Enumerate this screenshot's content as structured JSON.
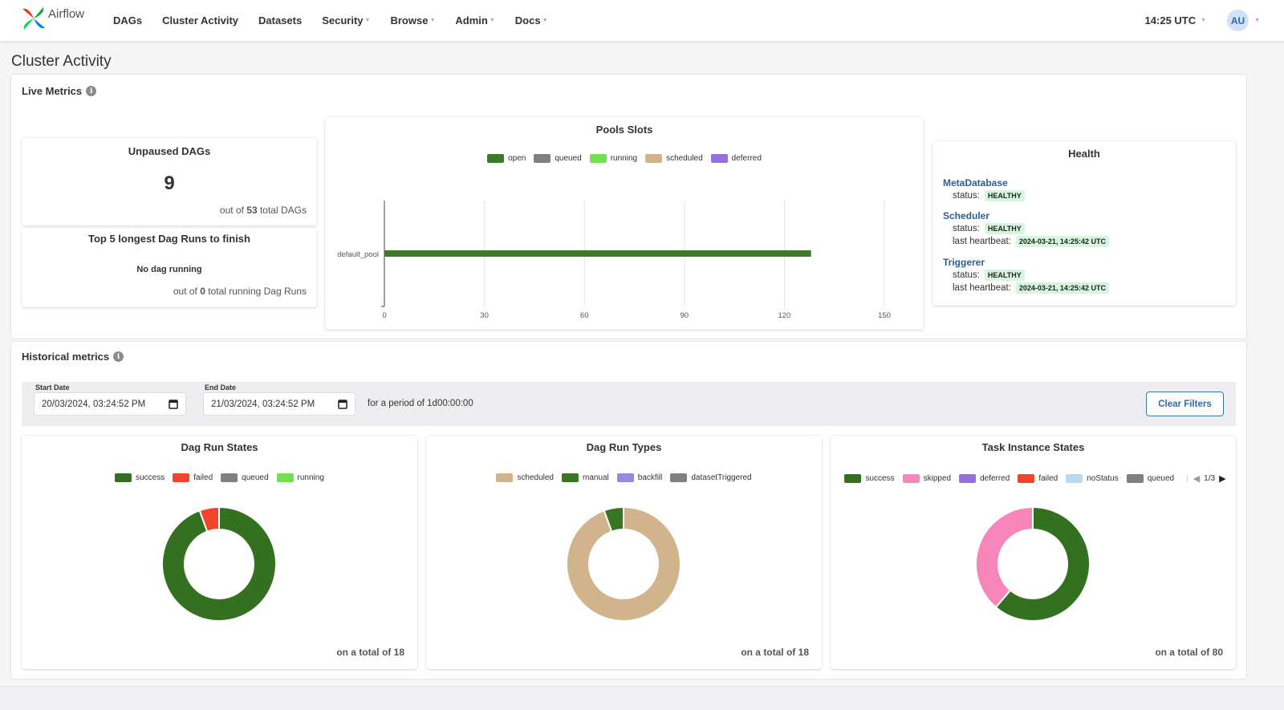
{
  "app": {
    "brand": "Airflow"
  },
  "nav": {
    "items": [
      {
        "label": "DAGs",
        "dropdown": false
      },
      {
        "label": "Cluster Activity",
        "dropdown": false
      },
      {
        "label": "Datasets",
        "dropdown": false
      },
      {
        "label": "Security",
        "dropdown": true
      },
      {
        "label": "Browse",
        "dropdown": true
      },
      {
        "label": "Admin",
        "dropdown": true
      },
      {
        "label": "Docs",
        "dropdown": true
      }
    ],
    "clock": "14:25 UTC",
    "avatar": "AU"
  },
  "page": {
    "title": "Cluster Activity"
  },
  "live": {
    "title": "Live Metrics",
    "unpaused": {
      "title": "Unpaused DAGs",
      "value": "9",
      "prefix": "out of",
      "total": "53",
      "suffix": "total DAGs"
    },
    "longest": {
      "title": "Top 5 longest Dag Runs to finish",
      "empty": "No dag running",
      "prefix": "out of",
      "total": "0",
      "suffix": "total running Dag Runs"
    },
    "health": {
      "title": "Health",
      "components": [
        {
          "name": "MetaDatabase",
          "status_label": "status:",
          "status": "HEALTHY"
        },
        {
          "name": "Scheduler",
          "status_label": "status:",
          "status": "HEALTHY",
          "heartbeat_label": "last heartbeat:",
          "heartbeat": "2024-03-21, 14:25:42 UTC"
        },
        {
          "name": "Triggerer",
          "status_label": "status:",
          "status": "HEALTHY",
          "heartbeat_label": "last heartbeat:",
          "heartbeat": "2024-03-21, 14:25:42 UTC"
        }
      ]
    }
  },
  "colors": {
    "open": "#3e7a2b",
    "queued": "#808080",
    "running": "#72e050",
    "scheduled": "#d2b48c",
    "deferred": "#9370db",
    "success": "#337020",
    "failed": "#f0452a",
    "manual": "#387525",
    "backfill": "#9a85e0",
    "datasetTriggered": "#808080",
    "skipped": "#f787bb",
    "noStatus": "#b8d9ee"
  },
  "historical": {
    "title": "Historical metrics",
    "start_label": "Start Date",
    "start_value": "20/03/2024, 03:24:52 PM",
    "end_label": "End Date",
    "end_value": "21/03/2024, 03:24:52 PM",
    "period": "for a period of 1d00:00:00",
    "clear_button": "Clear Filters"
  },
  "chart_data": [
    {
      "type": "bar",
      "orientation": "horizontal",
      "title": "Pools Slots",
      "categories": [
        "default_pool"
      ],
      "series": [
        {
          "name": "open",
          "values": [
            128
          ]
        },
        {
          "name": "queued",
          "values": [
            0
          ]
        },
        {
          "name": "running",
          "values": [
            0
          ]
        },
        {
          "name": "scheduled",
          "values": [
            0
          ]
        },
        {
          "name": "deferred",
          "values": [
            0
          ]
        }
      ],
      "xlim": [
        0,
        150
      ],
      "xticks": [
        0,
        30,
        60,
        90,
        120,
        150
      ],
      "grid": true,
      "legend": "top"
    },
    {
      "type": "pie",
      "donut": true,
      "title": "Dag Run States",
      "labels": [
        "success",
        "failed",
        "queued",
        "running"
      ],
      "values": [
        17,
        1,
        0,
        0
      ],
      "footer": "on a total of 18",
      "legend": "top"
    },
    {
      "type": "pie",
      "donut": true,
      "title": "Dag Run Types",
      "labels": [
        "scheduled",
        "manual",
        "backfill",
        "datasetTriggered"
      ],
      "values": [
        17,
        1,
        0,
        0
      ],
      "footer": "on a total of 18",
      "legend": "top"
    },
    {
      "type": "pie",
      "donut": true,
      "title": "Task Instance States",
      "labels": [
        "success",
        "skipped",
        "deferred",
        "failed",
        "noStatus",
        "queued"
      ],
      "values": [
        49,
        31,
        0,
        0,
        0,
        0
      ],
      "footer": "on a total of 80",
      "legend": "top",
      "legend_page": "1/3"
    }
  ]
}
